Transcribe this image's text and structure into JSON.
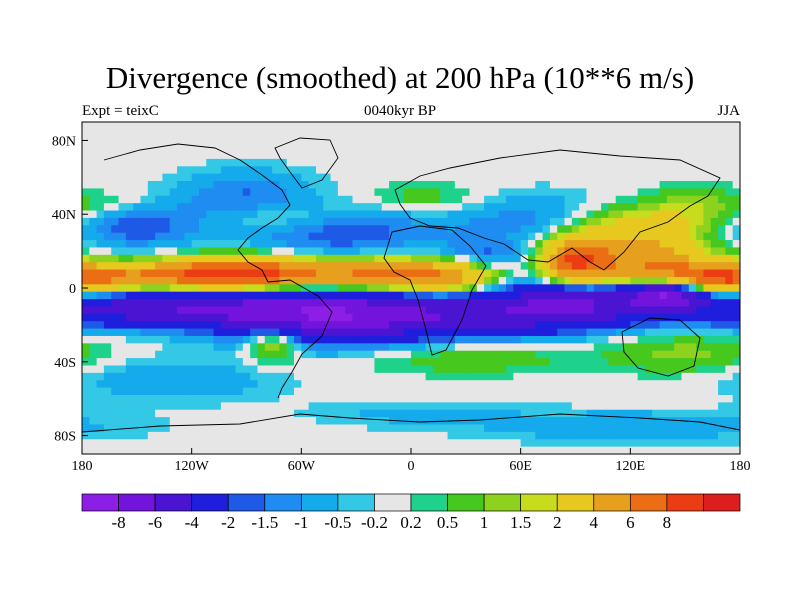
{
  "title": "Divergence (smoothed) at 200 hPa (10**6 m/s)",
  "subtitle_left": "Expt = teixC",
  "subtitle_center": "0040kyr BP",
  "subtitle_right": "JJA",
  "map": {
    "projection": "cylindrical-equidistant",
    "lon_range": [
      -180,
      180
    ],
    "lat_range": [
      -90,
      90
    ],
    "x_ticks": [
      {
        "value": -180,
        "label": "180"
      },
      {
        "value": -120,
        "label": "120W"
      },
      {
        "value": -60,
        "label": "60W"
      },
      {
        "value": 0,
        "label": "0"
      },
      {
        "value": 60,
        "label": "60E"
      },
      {
        "value": 120,
        "label": "120E"
      },
      {
        "value": 180,
        "label": "180"
      }
    ],
    "y_ticks": [
      {
        "value": 80,
        "label": "80N"
      },
      {
        "value": 40,
        "label": "40N"
      },
      {
        "value": 0,
        "label": "0"
      },
      {
        "value": -40,
        "label": "40S"
      },
      {
        "value": -80,
        "label": "80S"
      }
    ]
  },
  "colorbar": {
    "colors": [
      "#8c1ee6",
      "#7214dc",
      "#4b14d2",
      "#1e1edc",
      "#1e5ae6",
      "#1e8cf0",
      "#14aaeb",
      "#32c8e6",
      "#e6e6e6",
      "#1ed28c",
      "#46c81e",
      "#8cd21e",
      "#c8dc1e",
      "#e6c81e",
      "#e6a01e",
      "#eb6e14",
      "#eb3c14",
      "#dc1e1e"
    ],
    "labels": [
      "-8",
      "-6",
      "-4",
      "-2",
      "-1.5",
      "-1",
      "-0.5",
      "-0.2",
      "0.2",
      "0.5",
      "1",
      "1.5",
      "2",
      "4",
      "6",
      "8"
    ]
  },
  "field": {
    "description_levels": [
      -8,
      -6,
      -4,
      -2,
      -1.5,
      -1,
      -0.5,
      -0.2,
      0.2,
      0.5,
      1,
      1.5,
      2,
      4,
      6,
      8
    ],
    "blobs": [
      {
        "lon": -150,
        "lat": 6,
        "slon": 55,
        "slat": 5,
        "amp": 4
      },
      {
        "lon": -95,
        "lat": 8,
        "slon": 30,
        "slat": 6,
        "amp": 8
      },
      {
        "lon": -20,
        "lat": 7,
        "slon": 28,
        "slat": 6,
        "amp": 6
      },
      {
        "lon": 20,
        "lat": 6,
        "slon": 18,
        "slat": 6,
        "amp": 4
      },
      {
        "lon": 90,
        "lat": 15,
        "slon": 12,
        "slat": 8,
        "amp": 7
      },
      {
        "lon": 125,
        "lat": 15,
        "slon": 25,
        "slat": 9,
        "amp": 5
      },
      {
        "lon": 165,
        "lat": 5,
        "slon": 25,
        "slat": 6,
        "amp": 6
      },
      {
        "lon": 120,
        "lat": 32,
        "slon": 22,
        "slat": 8,
        "amp": 2.5
      },
      {
        "lon": 155,
        "lat": 42,
        "slon": 20,
        "slat": 8,
        "amp": 1.5
      },
      {
        "lon": -70,
        "lat": 38,
        "slon": 25,
        "slat": 6,
        "amp": 1.2
      },
      {
        "lon": 10,
        "lat": 48,
        "slon": 25,
        "slat": 6,
        "amp": 1.0
      },
      {
        "lon": -160,
        "lat": 45,
        "slon": 20,
        "slat": 6,
        "amp": 1.0
      },
      {
        "lon": -140,
        "lat": -20,
        "slon": 40,
        "slat": 6,
        "amp": 1.2
      },
      {
        "lon": -75,
        "lat": -28,
        "slon": 10,
        "slat": 8,
        "amp": 2.5
      },
      {
        "lon": 30,
        "lat": -38,
        "slon": 40,
        "slat": 6,
        "amp": 1.0
      },
      {
        "lon": 150,
        "lat": -35,
        "slon": 30,
        "slat": 8,
        "amp": 1.2
      },
      {
        "lon": -130,
        "lat": -12,
        "slon": 60,
        "slat": 8,
        "amp": -6
      },
      {
        "lon": -40,
        "lat": -15,
        "slon": 40,
        "slat": 10,
        "amp": -6
      },
      {
        "lon": 40,
        "lat": -15,
        "slon": 40,
        "slat": 8,
        "amp": -4
      },
      {
        "lon": 90,
        "lat": -8,
        "slon": 30,
        "slat": 8,
        "amp": -5
      },
      {
        "lon": 140,
        "lat": -2,
        "slon": 15,
        "slat": 6,
        "amp": -8
      },
      {
        "lon": -150,
        "lat": 35,
        "slon": 25,
        "slat": 10,
        "amp": -2
      },
      {
        "lon": -90,
        "lat": 50,
        "slon": 25,
        "slat": 10,
        "amp": -1.5
      },
      {
        "lon": -40,
        "lat": 30,
        "slon": 35,
        "slat": 10,
        "amp": -2
      },
      {
        "lon": 60,
        "lat": 38,
        "slon": 35,
        "slat": 10,
        "amp": -1.2
      },
      {
        "lon": 40,
        "lat": 18,
        "slon": 18,
        "slat": 6,
        "amp": -1.5
      },
      {
        "lon": -130,
        "lat": -50,
        "slon": 40,
        "slat": 8,
        "amp": -1.0
      },
      {
        "lon": 120,
        "lat": -75,
        "slon": 60,
        "slat": 6,
        "amp": -1.0
      },
      {
        "lon": 0,
        "lat": -68,
        "slon": 40,
        "slat": 5,
        "amp": -0.6
      }
    ]
  }
}
